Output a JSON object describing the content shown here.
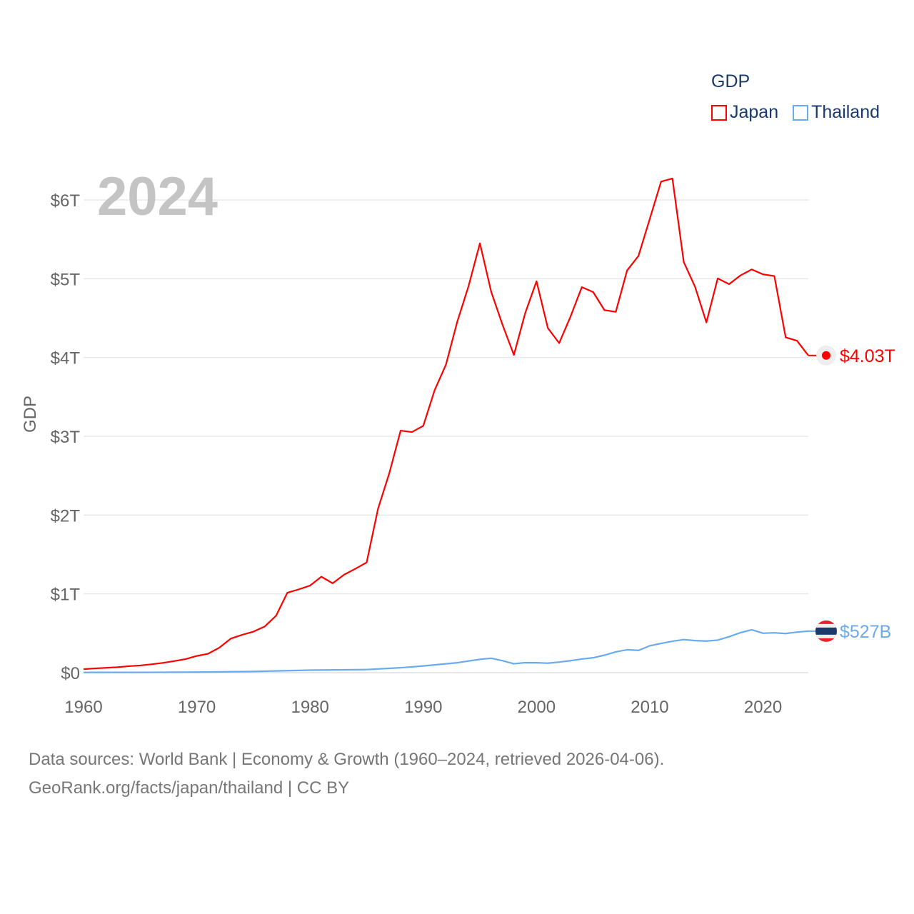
{
  "chart_data": {
    "type": "line",
    "title": "GDP",
    "ylabel": "GDP",
    "xlabel": "",
    "year_label": "2024",
    "xlim": [
      1960,
      2024
    ],
    "ylim": [
      0,
      6
    ],
    "y_unit": "trillion USD",
    "x_ticks": [
      "1960",
      "1970",
      "1980",
      "1990",
      "2000",
      "2010",
      "2020"
    ],
    "y_ticks": [
      {
        "value": 0,
        "label": "$0"
      },
      {
        "value": 1,
        "label": "$1T"
      },
      {
        "value": 2,
        "label": "$2T"
      },
      {
        "value": 3,
        "label": "$3T"
      },
      {
        "value": 4,
        "label": "$4T"
      },
      {
        "value": 5,
        "label": "$5T"
      },
      {
        "value": 6,
        "label": "$6T"
      }
    ],
    "grid": true,
    "legend_placement": "top-right",
    "series": [
      {
        "name": "Japan",
        "color": "#ff0000",
        "end_label": "$4.03T",
        "x": [
          1960,
          1961,
          1962,
          1963,
          1964,
          1965,
          1966,
          1967,
          1968,
          1969,
          1970,
          1971,
          1972,
          1973,
          1974,
          1975,
          1976,
          1977,
          1978,
          1979,
          1980,
          1981,
          1982,
          1983,
          1984,
          1985,
          1986,
          1987,
          1988,
          1989,
          1990,
          1991,
          1992,
          1993,
          1994,
          1995,
          1996,
          1997,
          1998,
          1999,
          2000,
          2001,
          2002,
          2003,
          2004,
          2005,
          2006,
          2007,
          2008,
          2009,
          2010,
          2011,
          2012,
          2013,
          2014,
          2015,
          2016,
          2017,
          2018,
          2019,
          2020,
          2021,
          2022,
          2023,
          2024
        ],
        "values": [
          0.044,
          0.054,
          0.061,
          0.069,
          0.082,
          0.091,
          0.106,
          0.124,
          0.147,
          0.172,
          0.212,
          0.24,
          0.318,
          0.432,
          0.48,
          0.521,
          0.586,
          0.722,
          1.015,
          1.057,
          1.105,
          1.218,
          1.134,
          1.243,
          1.318,
          1.399,
          2.078,
          2.532,
          3.072,
          3.054,
          3.133,
          3.584,
          3.909,
          4.454,
          4.907,
          5.449,
          4.833,
          4.414,
          4.033,
          4.563,
          4.968,
          4.374,
          4.183,
          4.519,
          4.893,
          4.831,
          4.601,
          4.58,
          5.106,
          5.289,
          5.759,
          6.233,
          6.272,
          5.212,
          4.897,
          4.445,
          5.004,
          4.931,
          5.041,
          5.118,
          5.055,
          5.034,
          4.256,
          4.213,
          4.026
        ]
      },
      {
        "name": "Thailand",
        "color": "#6aaaf0",
        "end_label": "$527B",
        "x": [
          1960,
          1965,
          1970,
          1975,
          1980,
          1985,
          1988,
          1990,
          1993,
          1995,
          1996,
          1997,
          1998,
          1999,
          2000,
          2001,
          2002,
          2003,
          2004,
          2005,
          2006,
          2007,
          2008,
          2009,
          2010,
          2011,
          2012,
          2013,
          2014,
          2015,
          2016,
          2017,
          2018,
          2019,
          2020,
          2021,
          2022,
          2023,
          2024
        ],
        "values": [
          0.003,
          0.004,
          0.007,
          0.015,
          0.032,
          0.039,
          0.062,
          0.085,
          0.126,
          0.169,
          0.183,
          0.151,
          0.113,
          0.127,
          0.126,
          0.12,
          0.134,
          0.152,
          0.173,
          0.189,
          0.222,
          0.263,
          0.291,
          0.282,
          0.341,
          0.371,
          0.398,
          0.42,
          0.407,
          0.401,
          0.413,
          0.456,
          0.507,
          0.544,
          0.5,
          0.506,
          0.496,
          0.515,
          0.527
        ]
      }
    ]
  },
  "legend": {
    "title": "GDP",
    "items": [
      "Japan",
      "Thailand"
    ]
  },
  "footer": {
    "line1": "Data sources: World Bank | Economy & Growth (1960–2024, retrieved 2026-04-06).",
    "line2": "GeoRank.org/facts/japan/thailand | CC BY"
  }
}
